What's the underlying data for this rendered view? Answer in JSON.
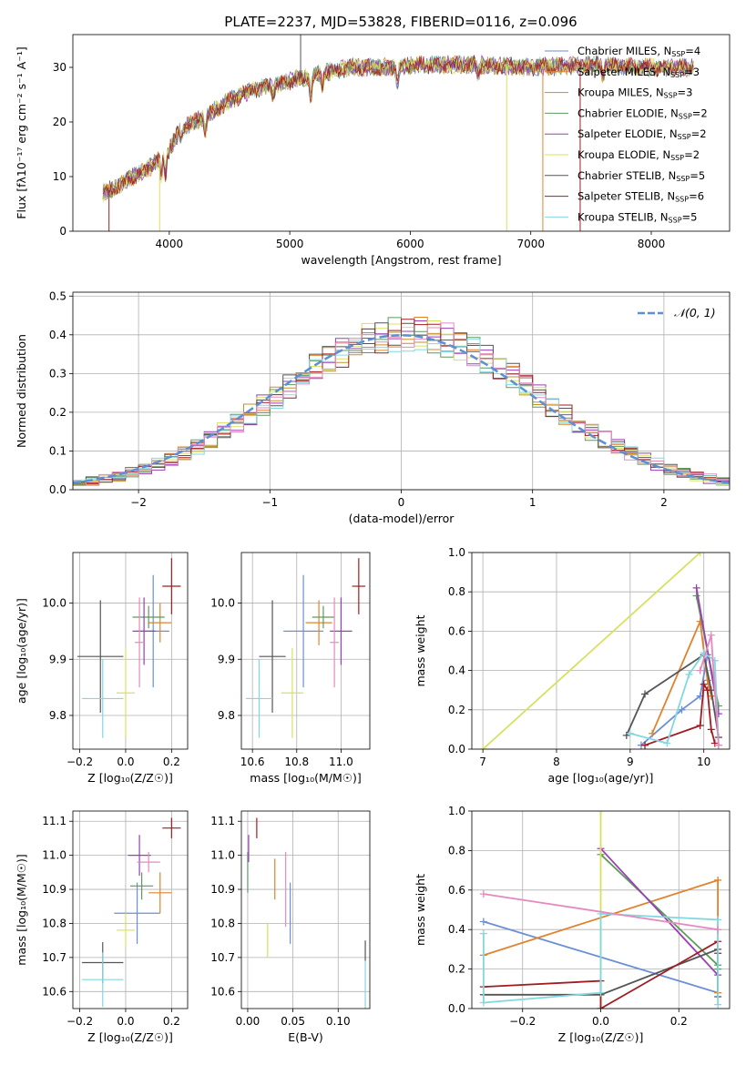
{
  "figure_title": "PLATE=2237, MJD=53828, FIBERID=0116, z=0.096",
  "colors": [
    "#6a8fd6",
    "#e0822e",
    "#c4902a",
    "#5e9a5e",
    "#9a3fb4",
    "#d8e060",
    "#555555",
    "#a01d22",
    "#82d8e0",
    "#e48ac0"
  ],
  "chart_data": [
    {
      "id": "spectrum",
      "type": "line",
      "xlabel": "wavelength [Angstrom, rest frame]",
      "ylabel": "Flux [fλ10⁻¹⁷ erg cm⁻² s⁻¹ A⁻¹]",
      "xlim": [
        3200,
        8650
      ],
      "ylim": [
        0,
        36
      ],
      "xticks": [
        4000,
        5000,
        6000,
        7000,
        8000
      ],
      "xticklabels": [
        "4000",
        "5000",
        "6000",
        "7000",
        "8000"
      ],
      "yticks": [
        0,
        10,
        20,
        30
      ],
      "yticklabels": [
        "0",
        "10",
        "20",
        "30"
      ],
      "grid": false,
      "legend_position": "right",
      "continuum_points": [
        [
          3450,
          7
        ],
        [
          3550,
          8
        ],
        [
          3700,
          10
        ],
        [
          3800,
          11
        ],
        [
          3900,
          13
        ],
        [
          4000,
          15
        ],
        [
          4100,
          19
        ],
        [
          4300,
          21
        ],
        [
          4500,
          24
        ],
        [
          4700,
          26
        ],
        [
          4900,
          27
        ],
        [
          5100,
          28
        ],
        [
          5300,
          29
        ],
        [
          5500,
          30
        ],
        [
          5800,
          30
        ],
        [
          6100,
          30.5
        ],
        [
          6500,
          30.5
        ],
        [
          7000,
          30
        ],
        [
          7500,
          30.5
        ],
        [
          8000,
          30
        ],
        [
          8350,
          30
        ]
      ],
      "absorption_lines": [
        [
          3934,
          4
        ],
        [
          3969,
          4
        ],
        [
          4102,
          2
        ],
        [
          4300,
          3
        ],
        [
          4861,
          2
        ],
        [
          5175,
          4
        ],
        [
          5270,
          2
        ],
        [
          5893,
          3
        ],
        [
          6563,
          2
        ],
        [
          7600,
          2
        ]
      ],
      "spikes": [
        [
          3500,
          0
        ],
        [
          3920,
          0
        ],
        [
          5090,
          36
        ],
        [
          6800,
          0
        ],
        [
          7100,
          0
        ],
        [
          7410,
          0
        ]
      ],
      "legend": [
        {
          "label": "Chabrier MILES, N",
          "sub": "SSP",
          "suffix": "=4",
          "color": "#6a8fd6"
        },
        {
          "label": "Salpeter MILES, N",
          "sub": "SSP",
          "suffix": "=3",
          "color": "#e0822e"
        },
        {
          "label": "Kroupa MILES, N",
          "sub": "SSP",
          "suffix": "=3",
          "color": "#c4902a"
        },
        {
          "label": "Chabrier ELODIE, N",
          "sub": "SSP",
          "suffix": "=2",
          "color": "#5e9a5e"
        },
        {
          "label": "Salpeter ELODIE, N",
          "sub": "SSP",
          "suffix": "=2",
          "color": "#9a3fb4"
        },
        {
          "label": "Kroupa ELODIE, N",
          "sub": "SSP",
          "suffix": "=2",
          "color": "#d8e060"
        },
        {
          "label": "Chabrier STELIB, N",
          "sub": "SSP",
          "suffix": "=5",
          "color": "#555555"
        },
        {
          "label": "Salpeter STELIB, N",
          "sub": "SSP",
          "suffix": "=6",
          "color": "#a01d22"
        },
        {
          "label": "Kroupa STELIB, N",
          "sub": "SSP",
          "suffix": "=5",
          "color": "#82d8e0"
        }
      ]
    },
    {
      "id": "histogram",
      "type": "histogram",
      "xlabel": "(data-model)/error",
      "ylabel": "Normed distribution",
      "xlim": [
        -2.5,
        2.5
      ],
      "ylim": [
        0,
        0.51
      ],
      "xticks": [
        -2,
        -1,
        0,
        1,
        2
      ],
      "xticklabels": [
        "−2",
        "−1",
        "0",
        "1",
        "2"
      ],
      "yticks": [
        0,
        0.1,
        0.2,
        0.3,
        0.4,
        0.5
      ],
      "yticklabels": [
        "0.0",
        "0.1",
        "0.2",
        "0.3",
        "0.4",
        "0.5"
      ],
      "grid": true,
      "legend_position": "top-right",
      "bin_edges_start": -2.5,
      "bin_width": 0.1,
      "base_histogram": [
        0.017,
        0.022,
        0.028,
        0.035,
        0.044,
        0.054,
        0.066,
        0.079,
        0.094,
        0.111,
        0.13,
        0.15,
        0.171,
        0.194,
        0.218,
        0.242,
        0.266,
        0.29,
        0.314,
        0.336,
        0.356,
        0.373,
        0.387,
        0.397,
        0.402,
        0.404,
        0.402,
        0.397,
        0.387,
        0.373,
        0.356,
        0.336,
        0.314,
        0.29,
        0.266,
        0.242,
        0.218,
        0.194,
        0.171,
        0.15,
        0.13,
        0.111,
        0.094,
        0.079,
        0.066,
        0.054,
        0.044,
        0.035,
        0.028,
        0.022
      ],
      "gaussian": {
        "mean": 0,
        "sigma": 1,
        "label": "𝒩(0, 1)",
        "color": "#5b8fd6"
      }
    },
    {
      "id": "z-age",
      "type": "scatter",
      "xlabel": "Z [log₁₀(Z/Z☉)]",
      "ylabel": "age  [log₁₀(age/yr)]",
      "xlim": [
        -0.23,
        0.27
      ],
      "ylim": [
        9.74,
        10.09
      ],
      "xticks": [
        -0.2,
        0,
        0.2
      ],
      "xticklabels": [
        "−0.2",
        "0.0",
        "0.2"
      ],
      "yticks": [
        9.8,
        9.9,
        10.0
      ],
      "yticklabels": [
        "9.8",
        "9.9",
        "10.0"
      ],
      "grid": true,
      "points": [
        {
          "x": 0.12,
          "y": 9.95,
          "xerr": 0.07,
          "yerr": 0.1,
          "color": "#6a8fd6"
        },
        {
          "x": 0.15,
          "y": 9.965,
          "xerr": 0.05,
          "yerr": 0.035,
          "color": "#e0822e"
        },
        {
          "x": 0.1,
          "y": 9.975,
          "xerr": 0.07,
          "yerr": 0.02,
          "color": "#5e9a5e"
        },
        {
          "x": 0.08,
          "y": 9.95,
          "xerr": 0.05,
          "yerr": 0.06,
          "color": "#9a3fb4"
        },
        {
          "x": 0.0,
          "y": 9.84,
          "xerr": 0.04,
          "yerr": 0.08,
          "color": "#d8e060"
        },
        {
          "x": -0.11,
          "y": 9.905,
          "xerr": 0.1,
          "yerr": 0.1,
          "color": "#555555"
        },
        {
          "x": 0.2,
          "y": 10.03,
          "xerr": 0.04,
          "yerr": 0.05,
          "color": "#a01d22"
        },
        {
          "x": -0.1,
          "y": 9.83,
          "xerr": 0.09,
          "yerr": 0.07,
          "color": "#82d8e0"
        },
        {
          "x": 0.06,
          "y": 9.93,
          "xerr": 0.02,
          "yerr": 0.08,
          "color": "#e48ac0"
        }
      ]
    },
    {
      "id": "mass-age",
      "type": "scatter",
      "xlabel": "mass [log₁₀(M/M☉)]",
      "ylabel": "",
      "xlim": [
        10.55,
        11.13
      ],
      "ylim": [
        9.74,
        10.09
      ],
      "xticks": [
        10.6,
        10.8,
        11.0
      ],
      "xticklabels": [
        "10.6",
        "10.8",
        "11.0"
      ],
      "yticks": [
        9.8,
        9.9,
        10.0
      ],
      "yticklabels": [
        "9.8",
        "9.9",
        "10.0"
      ],
      "grid": true,
      "points": [
        {
          "x": 10.83,
          "y": 9.95,
          "xerr": 0.09,
          "yerr": 0.1,
          "color": "#6a8fd6"
        },
        {
          "x": 10.9,
          "y": 9.965,
          "xerr": 0.06,
          "yerr": 0.04,
          "color": "#e0822e"
        },
        {
          "x": 10.92,
          "y": 9.975,
          "xerr": 0.05,
          "yerr": 0.02,
          "color": "#5e9a5e"
        },
        {
          "x": 11.0,
          "y": 9.95,
          "xerr": 0.05,
          "yerr": 0.06,
          "color": "#9a3fb4"
        },
        {
          "x": 10.78,
          "y": 9.84,
          "xerr": 0.05,
          "yerr": 0.08,
          "color": "#d8e060"
        },
        {
          "x": 10.69,
          "y": 9.905,
          "xerr": 0.06,
          "yerr": 0.1,
          "color": "#555555"
        },
        {
          "x": 11.08,
          "y": 10.03,
          "xerr": 0.03,
          "yerr": 0.05,
          "color": "#a01d22"
        },
        {
          "x": 10.63,
          "y": 9.83,
          "xerr": 0.06,
          "yerr": 0.07,
          "color": "#82d8e0"
        },
        {
          "x": 10.97,
          "y": 9.93,
          "xerr": 0.02,
          "yerr": 0.08,
          "color": "#e48ac0"
        }
      ]
    },
    {
      "id": "age-weight",
      "type": "line",
      "xlabel": "age  [log₁₀(age/yr)]",
      "ylabel": "mass weight",
      "xlim": [
        6.85,
        10.35
      ],
      "ylim": [
        0,
        1
      ],
      "xticks": [
        7,
        8,
        9,
        10
      ],
      "xticklabels": [
        "7",
        "8",
        "9",
        "10"
      ],
      "yticks": [
        0,
        0.2,
        0.4,
        0.6,
        0.8,
        1.0
      ],
      "yticklabels": [
        "0.0",
        "0.2",
        "0.4",
        "0.6",
        "0.8",
        "1.0"
      ],
      "grid": true,
      "series": [
        {
          "color": "#6a8fd6",
          "x": [
            9.15,
            9.7,
            9.95,
            10.05
          ],
          "y": [
            0.02,
            0.2,
            0.27,
            0.48
          ]
        },
        {
          "color": "#e0822e",
          "x": [
            9.3,
            9.95,
            10.05,
            10.1
          ],
          "y": [
            0.08,
            0.65,
            0.35,
            0.27
          ]
        },
        {
          "color": "#5e9a5e",
          "x": [
            9.9,
            10.2
          ],
          "y": [
            0.78,
            0.22
          ]
        },
        {
          "color": "#9a3fb4",
          "x": [
            9.9,
            10.2
          ],
          "y": [
            0.82,
            0.18
          ]
        },
        {
          "color": "#d8e060",
          "x": [
            7.0,
            9.95
          ],
          "y": [
            0.0,
            1.0
          ]
        },
        {
          "color": "#555555",
          "x": [
            8.95,
            9.2,
            10.0,
            10.1,
            10.2
          ],
          "y": [
            0.07,
            0.28,
            0.48,
            0.3,
            0.06
          ]
        },
        {
          "color": "#a01d22",
          "x": [
            9.2,
            9.95,
            10.0,
            10.05,
            10.1,
            10.15
          ],
          "y": [
            0.02,
            0.12,
            0.33,
            0.3,
            0.1,
            0.03
          ]
        },
        {
          "color": "#82d8e0",
          "x": [
            9.0,
            9.5,
            9.8,
            10.0,
            10.15,
            10.2
          ],
          "y": [
            0.08,
            0.03,
            0.38,
            0.49,
            0.45,
            0.02
          ]
        },
        {
          "color": "#e48ac0",
          "x": [
            9.95,
            10.1,
            10.2
          ],
          "y": [
            0.4,
            0.58,
            0.02
          ]
        }
      ]
    },
    {
      "id": "z-mass",
      "type": "scatter",
      "xlabel": "Z [log₁₀(Z/Z☉)]",
      "ylabel": "mass [log₁₀(M/M☉)]",
      "xlim": [
        -0.23,
        0.27
      ],
      "ylim": [
        10.55,
        11.13
      ],
      "xticks": [
        -0.2,
        0,
        0.2
      ],
      "xticklabels": [
        "−0.2",
        "0.0",
        "0.2"
      ],
      "yticks": [
        10.6,
        10.7,
        10.8,
        10.9,
        11.0,
        11.1
      ],
      "yticklabels": [
        "10.6",
        "10.7",
        "10.8",
        "10.9",
        "11.0",
        "11.1"
      ],
      "grid": true,
      "points": [
        {
          "x": 0.05,
          "y": 10.83,
          "xerr": 0.1,
          "yerr": 0.09,
          "color": "#6a8fd6"
        },
        {
          "x": 0.15,
          "y": 10.89,
          "xerr": 0.05,
          "yerr": 0.06,
          "color": "#e0822e"
        },
        {
          "x": 0.07,
          "y": 10.91,
          "xerr": 0.05,
          "yerr": 0.04,
          "color": "#5e9a5e"
        },
        {
          "x": 0.06,
          "y": 11.0,
          "xerr": 0.05,
          "yerr": 0.06,
          "color": "#9a3fb4"
        },
        {
          "x": 0.0,
          "y": 10.78,
          "xerr": 0.04,
          "yerr": 0.05,
          "color": "#d8e060"
        },
        {
          "x": -0.1,
          "y": 10.685,
          "xerr": 0.09,
          "yerr": 0.06,
          "color": "#555555"
        },
        {
          "x": 0.2,
          "y": 11.08,
          "xerr": 0.04,
          "yerr": 0.03,
          "color": "#a01d22"
        },
        {
          "x": -0.1,
          "y": 10.635,
          "xerr": 0.09,
          "yerr": 0.08,
          "color": "#82d8e0"
        },
        {
          "x": 0.1,
          "y": 10.98,
          "xerr": 0.05,
          "yerr": 0.03,
          "color": "#e48ac0"
        }
      ]
    },
    {
      "id": "ebv-mass",
      "type": "scatter",
      "xlabel": "E(B-V)",
      "ylabel": "",
      "xlim": [
        -0.007,
        0.135
      ],
      "ylim": [
        10.55,
        11.13
      ],
      "xticks": [
        0.0,
        0.05,
        0.1
      ],
      "xticklabels": [
        "0.00",
        "0.05",
        "0.10"
      ],
      "yticks": [
        10.6,
        10.7,
        10.8,
        10.9,
        11.0,
        11.1
      ],
      "yticklabels": [
        "10.6",
        "10.7",
        "10.8",
        "10.9",
        "11.0",
        "11.1"
      ],
      "grid": true,
      "points": [
        {
          "x": 0.047,
          "y": 10.83,
          "xerr": 0,
          "yerr": 0.09,
          "color": "#6a8fd6"
        },
        {
          "x": 0.03,
          "y": 10.93,
          "xerr": 0,
          "yerr": 0.06,
          "color": "#e0822e"
        },
        {
          "x": 0.0,
          "y": 10.95,
          "xerr": 0,
          "yerr": 0.06,
          "color": "#5e9a5e"
        },
        {
          "x": 0.001,
          "y": 11.02,
          "xerr": 0,
          "yerr": 0.04,
          "color": "#9a3fb4"
        },
        {
          "x": 0.022,
          "y": 10.75,
          "xerr": 0,
          "yerr": 0.05,
          "color": "#d8e060"
        },
        {
          "x": 0.13,
          "y": 10.72,
          "xerr": 0,
          "yerr": 0.03,
          "color": "#555555"
        },
        {
          "x": 0.01,
          "y": 11.08,
          "xerr": 0,
          "yerr": 0.03,
          "color": "#a01d22"
        },
        {
          "x": 0.13,
          "y": 10.62,
          "xerr": 0,
          "yerr": 0.07,
          "color": "#82d8e0"
        },
        {
          "x": 0.042,
          "y": 10.9,
          "xerr": 0,
          "yerr": 0.11,
          "color": "#e48ac0"
        }
      ]
    },
    {
      "id": "z-weight",
      "type": "line",
      "xlabel": "Z [log₁₀(Z/Z☉)]",
      "ylabel": "mass weight",
      "xlim": [
        -0.33,
        0.33
      ],
      "ylim": [
        0,
        1
      ],
      "xticks": [
        -0.2,
        0,
        0.2
      ],
      "xticklabels": [
        "−0.2",
        "0.0",
        "0.2"
      ],
      "yticks": [
        0,
        0.2,
        0.4,
        0.6,
        0.8,
        1.0
      ],
      "yticklabels": [
        "0.0",
        "0.2",
        "0.4",
        "0.6",
        "0.8",
        "1.0"
      ],
      "grid": true,
      "series": [
        {
          "color": "#6a8fd6",
          "x": [
            -0.3,
            0.3
          ],
          "y": [
            0.44,
            0.08
          ]
        },
        {
          "color": "#e0822e",
          "x": [
            -0.3,
            0.3,
            0.3
          ],
          "y": [
            0.27,
            0.65,
            0.08
          ]
        },
        {
          "color": "#5e9a5e",
          "x": [
            0.0,
            0.3,
            0.3
          ],
          "y": [
            0.78,
            0.22,
            0.2
          ]
        },
        {
          "color": "#9a3fb4",
          "x": [
            0.0,
            0.3
          ],
          "y": [
            0.81,
            0.17
          ]
        },
        {
          "color": "#d8e060",
          "x": [
            0.0,
            0.0
          ],
          "y": [
            0.0,
            1.0
          ]
        },
        {
          "color": "#555555",
          "x": [
            -0.3,
            0.0,
            0.3,
            0.3
          ],
          "y": [
            0.07,
            0.07,
            0.3,
            0.06
          ]
        },
        {
          "color": "#a01d22",
          "x": [
            -0.3,
            0.0,
            0.0,
            0.3,
            0.3
          ],
          "y": [
            0.11,
            0.14,
            0.0,
            0.34,
            0.28
          ]
        },
        {
          "color": "#82d8e0",
          "x": [
            -0.3,
            -0.3,
            0.0,
            0.0,
            0.3,
            0.3
          ],
          "y": [
            0.38,
            0.03,
            0.08,
            0.48,
            0.45,
            0.02
          ]
        },
        {
          "color": "#e48ac0",
          "x": [
            -0.3,
            0.3
          ],
          "y": [
            0.58,
            0.4
          ]
        }
      ]
    }
  ]
}
